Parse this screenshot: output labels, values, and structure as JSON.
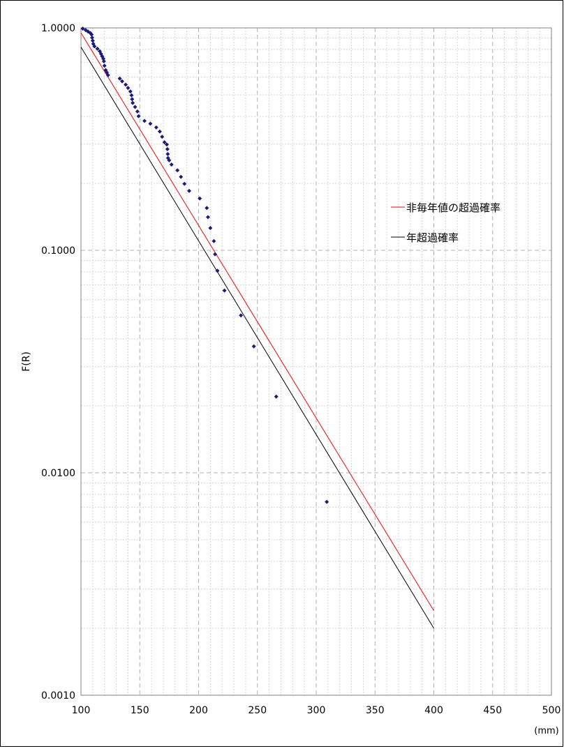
{
  "chart_data": {
    "type": "scatter",
    "title": "",
    "xlabel": "(mm)",
    "ylabel": "F(R)",
    "xlim": [
      100,
      500
    ],
    "ylim": [
      0.001,
      1.0
    ],
    "y_scale": "log",
    "grid": true,
    "legend_position": "right",
    "x_ticks": [
      100,
      150,
      200,
      250,
      300,
      350,
      400,
      450,
      500
    ],
    "x_tick_labels": [
      "100",
      "150",
      "200",
      "250",
      "300",
      "350",
      "400",
      "450",
      "500"
    ],
    "y_ticks": [
      1.0,
      0.1,
      0.01,
      0.001
    ],
    "y_tick_labels": [
      "1.0000",
      "0.1000",
      "0.0100",
      "0.0010"
    ],
    "series": [
      {
        "type": "scatter",
        "color": "#1a1a80",
        "points": [
          [
            101.5,
            0.993
          ],
          [
            104.0,
            0.978
          ],
          [
            106.0,
            0.963
          ],
          [
            108.0,
            0.948
          ],
          [
            109.0,
            0.934
          ],
          [
            109.5,
            0.904
          ],
          [
            110.0,
            0.876
          ],
          [
            110.5,
            0.848
          ],
          [
            111.5,
            0.826
          ],
          [
            114.0,
            0.806
          ],
          [
            116.0,
            0.785
          ],
          [
            117.0,
            0.765
          ],
          [
            118.0,
            0.746
          ],
          [
            119.0,
            0.727
          ],
          [
            119.5,
            0.708
          ],
          [
            120.0,
            0.676
          ],
          [
            121.0,
            0.646
          ],
          [
            122.0,
            0.63
          ],
          [
            123.0,
            0.613
          ],
          [
            133.0,
            0.592
          ],
          [
            135.0,
            0.575
          ],
          [
            138.0,
            0.556
          ],
          [
            140.0,
            0.537
          ],
          [
            142.0,
            0.518
          ],
          [
            143.0,
            0.498
          ],
          [
            143.5,
            0.478
          ],
          [
            144.0,
            0.46
          ],
          [
            146.0,
            0.441
          ],
          [
            148.0,
            0.421
          ],
          [
            149.0,
            0.401
          ],
          [
            154.0,
            0.382
          ],
          [
            159.0,
            0.371
          ],
          [
            164.0,
            0.357
          ],
          [
            167.0,
            0.342
          ],
          [
            169.0,
            0.324
          ],
          [
            171.0,
            0.306
          ],
          [
            173.0,
            0.299
          ],
          [
            173.5,
            0.285
          ],
          [
            173.8,
            0.271
          ],
          [
            174.0,
            0.26
          ],
          [
            175.0,
            0.254
          ],
          [
            177.0,
            0.243
          ],
          [
            182.0,
            0.229
          ],
          [
            185.0,
            0.214
          ],
          [
            188.0,
            0.199
          ],
          [
            192.0,
            0.185
          ],
          [
            201.0,
            0.171
          ],
          [
            207.0,
            0.155
          ],
          [
            208.0,
            0.141
          ],
          [
            210.0,
            0.126
          ],
          [
            213.0,
            0.11
          ],
          [
            214.0,
            0.096
          ],
          [
            216.0,
            0.081
          ],
          [
            222.0,
            0.066
          ],
          [
            236.0,
            0.051
          ],
          [
            247.0,
            0.037
          ],
          [
            266.0,
            0.022
          ],
          [
            309.0,
            0.0074
          ]
        ]
      },
      {
        "name": "非毎年値の超過確率",
        "type": "line",
        "color": "#ff0000",
        "points": [
          [
            100,
            0.95
          ],
          [
            400,
            0.0024
          ]
        ]
      },
      {
        "name": "年超過確率",
        "type": "line",
        "color": "#000000",
        "points": [
          [
            100,
            0.82
          ],
          [
            400,
            0.002
          ]
        ]
      }
    ]
  }
}
